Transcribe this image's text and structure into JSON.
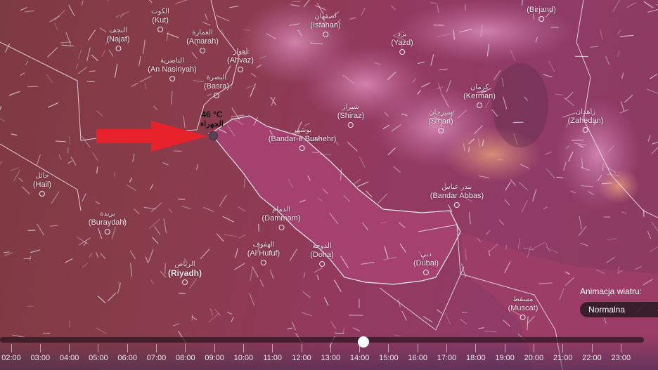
{
  "map": {
    "cities": [
      {
        "id": "kut",
        "ar": "الكوت",
        "name": "(Kut)"
      },
      {
        "id": "najaf",
        "ar": "النجف",
        "name": "(Najaf)"
      },
      {
        "id": "amarah",
        "ar": "العمارة",
        "name": "(Amarah)"
      },
      {
        "id": "ahvaz",
        "ar": "اهواز",
        "name": "(Ahvaz)"
      },
      {
        "id": "nasiriyah",
        "ar": "الناصرية",
        "name": "(An Nasiriyah)"
      },
      {
        "id": "basra",
        "ar": "البصرة",
        "name": "(Basra)"
      },
      {
        "id": "isfahan",
        "ar": "اصفهان",
        "name": "(Isfahan)"
      },
      {
        "id": "yazd",
        "ar": "یزد",
        "name": "(Yazd)"
      },
      {
        "id": "birjand",
        "ar": "",
        "name": "(Birjand)"
      },
      {
        "id": "kerman",
        "ar": "كرمان",
        "name": "(Kerman)"
      },
      {
        "id": "shiraz",
        "ar": "شیراز",
        "name": "(Shiraz)"
      },
      {
        "id": "sirjan",
        "ar": "سيرجان",
        "name": "(Sirjan)"
      },
      {
        "id": "zahedan",
        "ar": "زاهدان",
        "name": "(Zahedan)"
      },
      {
        "id": "bushehr",
        "ar": "بوشهر",
        "name": "(Bandar-e Bushehr)"
      },
      {
        "id": "hail",
        "ar": "حائل",
        "name": "(Hail)"
      },
      {
        "id": "buraydah",
        "ar": "بريدة",
        "name": "(Buraydah)"
      },
      {
        "id": "dammam",
        "ar": "الدمام",
        "name": "(Dammam)"
      },
      {
        "id": "hufuf",
        "ar": "الهفوف",
        "name": "(Al Hufuf)"
      },
      {
        "id": "doha",
        "ar": "الدوحة",
        "name": "(Doha)"
      },
      {
        "id": "bandarabbas",
        "ar": "بندر عباس",
        "name": "(Bandar Abbas)"
      },
      {
        "id": "dubai",
        "ar": "دبي",
        "name": "(Dubai)"
      },
      {
        "id": "riyadh",
        "ar": "الرياض",
        "name": "(Riyadh)"
      },
      {
        "id": "muscat",
        "ar": "مسقط",
        "name": "(Muscat)"
      }
    ],
    "marker": {
      "temperature": "46 °C",
      "place": "الجهراء"
    },
    "colors": {
      "arrow": "#e8222a",
      "land_west": "#7e3a42",
      "land_east": "#93395e",
      "gulf": "#a4416f",
      "cloud": "#d77ab0"
    }
  },
  "timeline": {
    "hours": [
      "02:00",
      "03:00",
      "04:00",
      "05:00",
      "06:00",
      "07:00",
      "08:00",
      "09:00",
      "10:00",
      "11:00",
      "12:00",
      "13:00",
      "14:00",
      "15:00",
      "16:00",
      "17:00",
      "18:00",
      "19:00",
      "20:00",
      "21:00",
      "22:00",
      "23:00"
    ],
    "current": "14:00"
  },
  "wind_animation": {
    "label": "Animacja wiatru:",
    "value": "Normalna"
  }
}
